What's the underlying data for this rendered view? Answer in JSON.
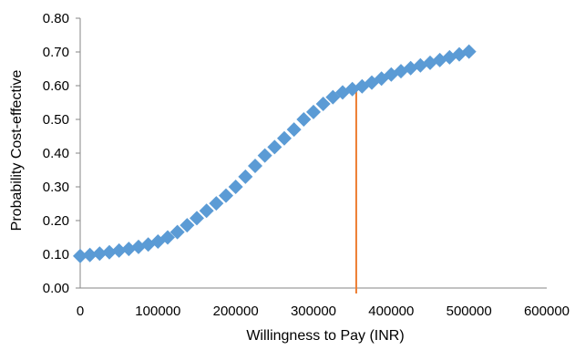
{
  "chart_data": {
    "type": "scatter",
    "title": "",
    "xlabel": "Willingness to Pay (INR)",
    "ylabel": "Probability Cost-effective",
    "xlim": [
      0,
      600000
    ],
    "ylim": [
      0,
      0.8
    ],
    "x_ticks": [
      "0",
      "100000",
      "200000",
      "300000",
      "400000",
      "500000",
      "600000"
    ],
    "y_ticks": [
      "0.00",
      "0.10",
      "0.20",
      "0.30",
      "0.40",
      "0.50",
      "0.60",
      "0.70",
      "0.80"
    ],
    "grid": false,
    "legend": "none",
    "series": [
      {
        "marker": "diamond",
        "color": "#5b9bd5",
        "x": [
          0,
          12500,
          25000,
          37500,
          50000,
          62500,
          75000,
          87500,
          100000,
          112500,
          125000,
          137500,
          150000,
          162500,
          175000,
          187500,
          200000,
          212500,
          225000,
          237500,
          250000,
          262500,
          275000,
          287500,
          300000,
          312500,
          325000,
          337500,
          350000,
          362500,
          375000,
          387500,
          400000,
          412500,
          425000,
          437500,
          450000,
          462500,
          475000,
          487500,
          500000
        ],
        "y": [
          0.095,
          0.098,
          0.102,
          0.106,
          0.111,
          0.116,
          0.122,
          0.129,
          0.138,
          0.15,
          0.166,
          0.186,
          0.207,
          0.229,
          0.251,
          0.274,
          0.3,
          0.33,
          0.362,
          0.393,
          0.418,
          0.444,
          0.47,
          0.5,
          0.522,
          0.546,
          0.566,
          0.58,
          0.59,
          0.598,
          0.609,
          0.621,
          0.633,
          0.643,
          0.652,
          0.66,
          0.668,
          0.676,
          0.684,
          0.693,
          0.701
        ]
      }
    ],
    "threshold_line": {
      "x": 355000,
      "y": 0.59,
      "color": "#ed7d31"
    }
  }
}
